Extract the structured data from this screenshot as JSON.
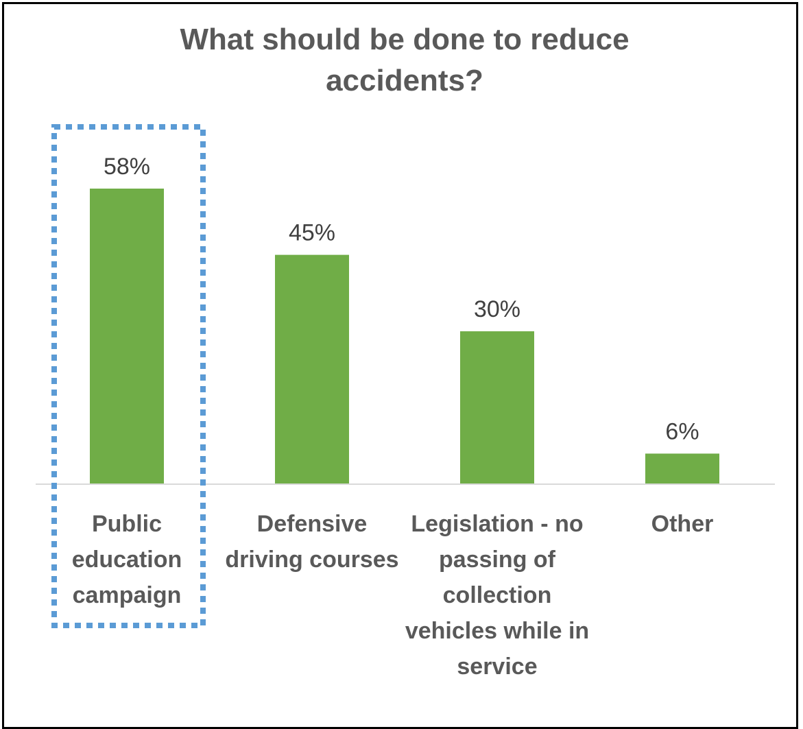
{
  "chart_data": {
    "type": "bar",
    "title": "What should be done to reduce accidents?",
    "categories": [
      "Public education campaign",
      "Defensive driving courses",
      "Legislation - no passing of collection vehicles while in service",
      "Other"
    ],
    "values": [
      58,
      45,
      30,
      6
    ],
    "data_labels": [
      "58%",
      "45%",
      "30%",
      "6%"
    ],
    "unit": "%",
    "ylim": [
      0,
      70
    ],
    "grid": false,
    "legend": "none",
    "highlighted_category": "Public education campaign",
    "colors": {
      "bar": "#70ad47",
      "text": "#595959",
      "data_label": "#404040",
      "highlight_box": "#5b9bd5",
      "axis": "#d9d9d9"
    }
  }
}
